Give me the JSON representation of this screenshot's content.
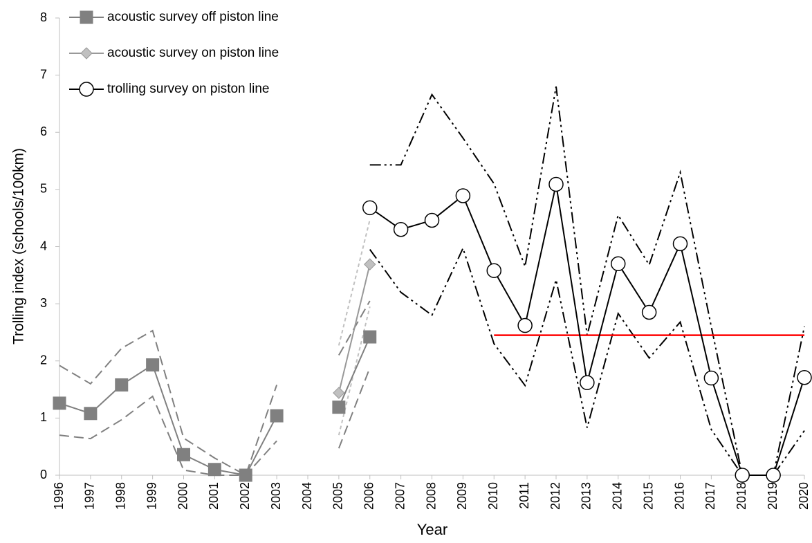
{
  "chart_data": {
    "type": "line",
    "y_label": "Trolling index (schools/100km)",
    "x_label": "Year",
    "x": [
      1996,
      1997,
      1998,
      1999,
      2000,
      2001,
      2002,
      2003,
      2004,
      2005,
      2006,
      2007,
      2008,
      2009,
      2010,
      2011,
      2012,
      2013,
      2014,
      2015,
      2016,
      2017,
      2018,
      2019,
      2020
    ],
    "xlim": [
      1996,
      2020
    ],
    "xticks": [
      1996,
      1997,
      1998,
      1999,
      2000,
      2001,
      2002,
      2003,
      2004,
      2005,
      2006,
      2007,
      2008,
      2009,
      2010,
      2011,
      2012,
      2013,
      2014,
      2015,
      2016,
      2017,
      2018,
      2019,
      2020
    ],
    "ylim": [
      0,
      8
    ],
    "yticks": [
      0,
      1,
      2,
      3,
      4,
      5,
      6,
      7,
      8
    ],
    "legend": "upper left",
    "series": [
      {
        "color": "#808080",
        "style": "dashed",
        "values": [
          1.92,
          1.6,
          2.22,
          2.53,
          0.65,
          0.3,
          0,
          1.58,
          null,
          2.1,
          3.05,
          null,
          null,
          null,
          null,
          null,
          null,
          null,
          null,
          null,
          null,
          null,
          null,
          null,
          null
        ]
      },
      {
        "color": "#808080",
        "style": "dashed",
        "values": [
          0.7,
          0.64,
          0.97,
          1.38,
          0.09,
          0,
          0,
          0.6,
          null,
          0.47,
          1.88,
          null,
          null,
          null,
          null,
          null,
          null,
          null,
          null,
          null,
          null,
          null,
          null,
          null,
          null
        ]
      },
      {
        "color": "#c0c0c0",
        "style": "dotted",
        "values": [
          null,
          null,
          null,
          null,
          null,
          null,
          null,
          null,
          null,
          2.27,
          4.47,
          null,
          null,
          null,
          null,
          null,
          null,
          null,
          null,
          null,
          null,
          null,
          null,
          null,
          null
        ]
      },
      {
        "color": "#c0c0c0",
        "style": "dotted",
        "values": [
          null,
          null,
          null,
          null,
          null,
          null,
          null,
          null,
          null,
          0.7,
          2.95,
          null,
          null,
          null,
          null,
          null,
          null,
          null,
          null,
          null,
          null,
          null,
          null,
          null,
          null
        ]
      },
      {
        "color": "#000000",
        "style": "dashdot",
        "values": [
          null,
          null,
          null,
          null,
          null,
          null,
          null,
          null,
          null,
          null,
          5.43,
          5.43,
          6.66,
          5.9,
          5.1,
          3.65,
          6.8,
          2.45,
          4.55,
          3.68,
          5.3,
          2.6,
          0,
          0,
          2.6
        ]
      },
      {
        "color": "#000000",
        "style": "dashdot",
        "values": [
          null,
          null,
          null,
          null,
          null,
          null,
          null,
          null,
          null,
          null,
          3.95,
          3.2,
          2.8,
          3.97,
          2.3,
          1.57,
          3.42,
          0.83,
          2.83,
          2.05,
          2.68,
          0.8,
          0,
          0,
          0.78
        ]
      },
      {
        "color": "#ff0000",
        "style": "solid",
        "values": [
          null,
          null,
          null,
          null,
          null,
          null,
          null,
          null,
          null,
          null,
          null,
          null,
          null,
          null,
          2.45,
          2.45,
          2.45,
          2.45,
          2.45,
          2.45,
          2.45,
          2.45,
          2.45,
          2.45,
          2.45
        ]
      },
      {
        "name": "acoustic survey off piston line",
        "color": "#808080",
        "marker": "square",
        "marker_fill": "#808080",
        "style": "solid",
        "values": [
          1.26,
          1.08,
          1.58,
          1.93,
          0.36,
          0.1,
          0,
          1.04,
          null,
          1.19,
          2.42,
          null,
          null,
          null,
          null,
          null,
          null,
          null,
          null,
          null,
          null,
          null,
          null,
          null,
          null
        ]
      },
      {
        "name": "acoustic survey on piston line",
        "color": "#999999",
        "marker": "diamond",
        "marker_fill": "#c0c0c0",
        "style": "solid",
        "values": [
          null,
          null,
          null,
          null,
          null,
          null,
          null,
          null,
          null,
          1.44,
          3.69,
          null,
          null,
          null,
          null,
          null,
          null,
          null,
          null,
          null,
          null,
          null,
          null,
          null,
          null
        ]
      },
      {
        "name": "trolling survey on piston line",
        "color": "#000000",
        "marker": "circle",
        "marker_fill": "#ffffff",
        "style": "solid",
        "values": [
          null,
          null,
          null,
          null,
          null,
          null,
          null,
          null,
          null,
          null,
          4.68,
          4.3,
          4.46,
          4.89,
          3.58,
          2.62,
          5.09,
          1.62,
          3.7,
          2.85,
          4.05,
          1.7,
          0,
          0,
          1.71
        ]
      }
    ]
  }
}
